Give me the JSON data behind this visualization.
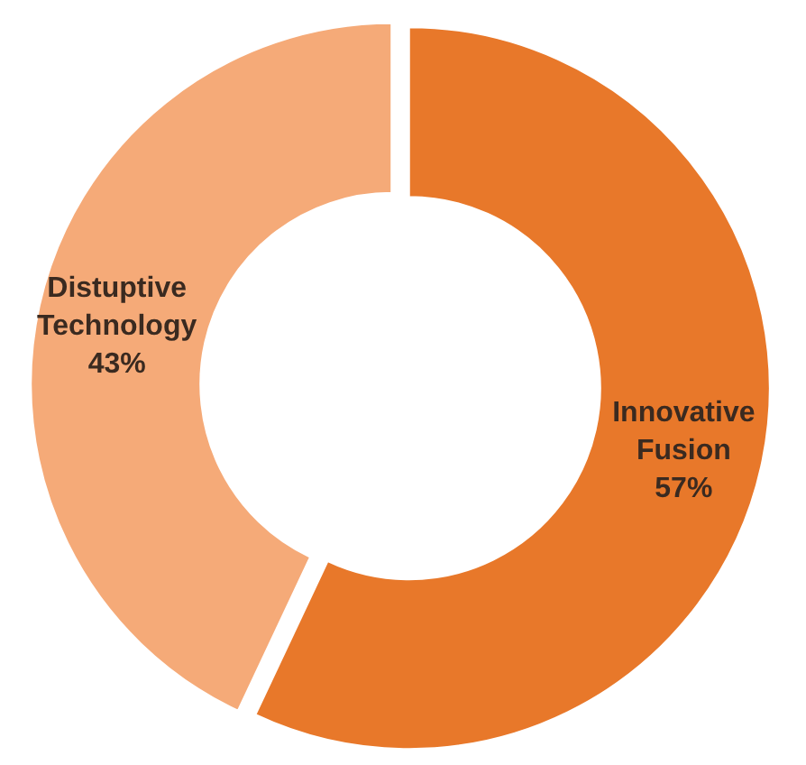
{
  "chart_data": {
    "type": "donut",
    "categories": [
      "Innovative Fusion",
      "Distuptive Technology"
    ],
    "values": [
      57,
      43
    ],
    "value_labels": [
      "57%",
      "43%"
    ],
    "colors": [
      "#e8782a",
      "#f5aa78"
    ]
  }
}
